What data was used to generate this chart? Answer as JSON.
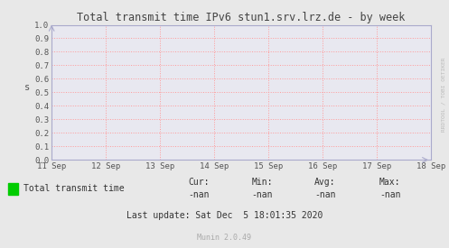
{
  "title": "Total transmit time IPv6 stun1.srv.lrz.de - by week",
  "ylabel": "s",
  "outer_bg_color": "#e8e8e8",
  "plot_bg_color": "#e8e8f0",
  "grid_color": "#ff9999",
  "axis_color": "#aaaacc",
  "title_color": "#444444",
  "tick_label_color": "#555555",
  "watermark": "RRDTOOL / TOBI OETIKER",
  "munin_version": "Munin 2.0.49",
  "xlim_start": 1599696000,
  "xlim_end": 1600300800,
  "ylim": [
    0.0,
    1.0
  ],
  "yticks": [
    0.0,
    0.1,
    0.2,
    0.3,
    0.4,
    0.5,
    0.6,
    0.7,
    0.8,
    0.9,
    1.0
  ],
  "xtick_labels": [
    "11 Sep",
    "12 Sep",
    "13 Sep",
    "14 Sep",
    "15 Sep",
    "16 Sep",
    "17 Sep",
    "18 Sep"
  ],
  "xtick_positions": [
    1599696000,
    1599782400,
    1599868800,
    1599955200,
    1600041600,
    1600128000,
    1600214400,
    1600300800
  ],
  "legend_label": "Total transmit time",
  "legend_color": "#00cc00",
  "cur_val": "-nan",
  "min_val": "-nan",
  "avg_val": "-nan",
  "max_val": "-nan",
  "last_update": "Last update: Sat Dec  5 18:01:35 2020",
  "munin_text_color": "#aaaaaa",
  "font_family": "DejaVu Sans Mono"
}
